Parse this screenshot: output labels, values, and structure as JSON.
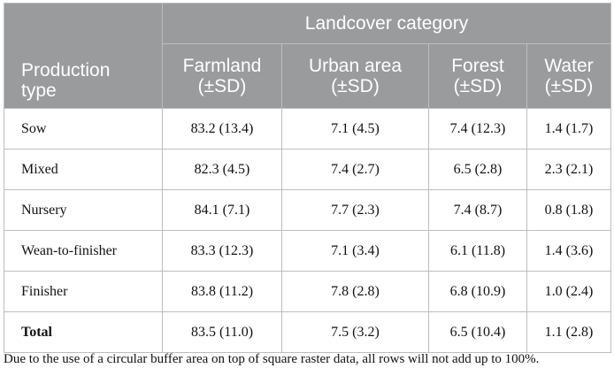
{
  "table": {
    "group_header": "Landcover category",
    "type_header_line1": "Production",
    "type_header_line2": "type",
    "columns": [
      {
        "line1": "Farmland",
        "line2": "(±SD)"
      },
      {
        "line1": "Urban area",
        "line2": "(±SD)"
      },
      {
        "line1": "Forest",
        "line2": "(±SD)"
      },
      {
        "line1": "Water",
        "line2": "(±SD)"
      }
    ],
    "rows": [
      {
        "type": "Sow",
        "values": [
          "83.2 (13.4)",
          "7.1 (4.5)",
          "7.4 (12.3)",
          "1.4 (1.7)"
        ]
      },
      {
        "type": "Mixed",
        "values": [
          "82.3 (4.5)",
          "7.4 (2.7)",
          "6.5 (2.8)",
          "2.3 (2.1)"
        ]
      },
      {
        "type": "Nursery",
        "values": [
          "84.1 (7.1)",
          "7.7 (2.3)",
          "7.4 (8.7)",
          "0.8 (1.8)"
        ]
      },
      {
        "type": "Wean-to-finisher",
        "values": [
          "83.3 (12.3)",
          "7.1 (3.4)",
          "6.1 (11.8)",
          "1.4 (3.6)"
        ]
      },
      {
        "type": "Finisher",
        "values": [
          "83.8 (11.2)",
          "7.8 (2.8)",
          "6.8 (10.9)",
          "1.0 (2.4)"
        ]
      },
      {
        "type": "Total",
        "values": [
          "83.5 (11.0)",
          "7.5 (3.2)",
          "6.5 (10.4)",
          "1.1 (2.8)"
        ]
      }
    ]
  },
  "note": "Due to the use of a circular buffer area on top of square raster data, all rows will not add up to 100%.",
  "colors": {
    "header_bg": "#9a9b9d",
    "header_text": "#ffffff",
    "border": "#bdbdbd"
  }
}
